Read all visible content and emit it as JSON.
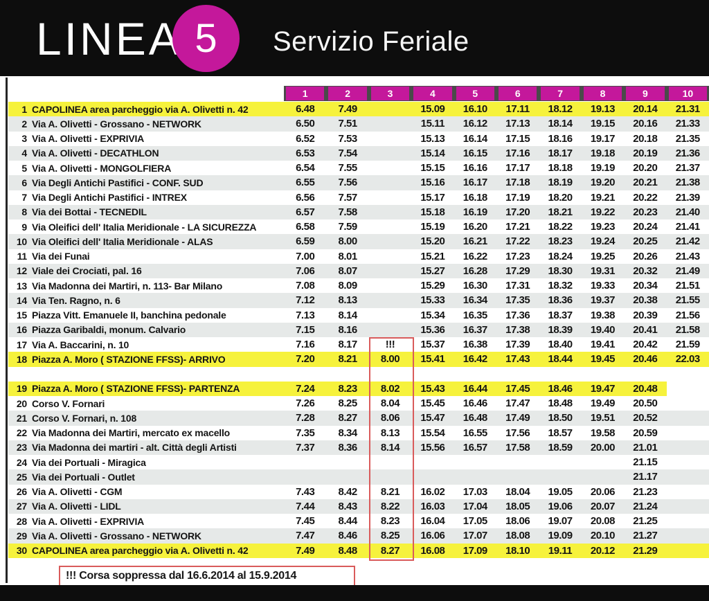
{
  "header": {
    "line_label": "LINEA",
    "line_number": "5",
    "service_name": "Servizio Feriale"
  },
  "colors": {
    "magenta": "#c4189b",
    "yellow": "#f6f23c",
    "stripe_gray": "#e6e9e8",
    "note_red": "#d95b5b",
    "title_bg": "#0d0d0d"
  },
  "columns": [
    "1",
    "2",
    "3",
    "4",
    "5",
    "6",
    "7",
    "8",
    "9",
    "10"
  ],
  "stops": [
    {
      "num": "1",
      "name": "CAPOLINEA area parcheggio via A. Olivetti n. 42",
      "shade": "yellow",
      "times": [
        "6.48",
        "7.49",
        "",
        "15.09",
        "16.10",
        "17.11",
        "18.12",
        "19.13",
        "20.14",
        "21.31"
      ]
    },
    {
      "num": "2",
      "name": "Via A. Olivetti - Grossano - NETWORK",
      "shade": "gray",
      "times": [
        "6.50",
        "7.51",
        "",
        "15.11",
        "16.12",
        "17.13",
        "18.14",
        "19.15",
        "20.16",
        "21.33"
      ]
    },
    {
      "num": "3",
      "name": "Via A. Olivetti - EXPRIVIA",
      "shade": "white",
      "times": [
        "6.52",
        "7.53",
        "",
        "15.13",
        "16.14",
        "17.15",
        "18.16",
        "19.17",
        "20.18",
        "21.35"
      ]
    },
    {
      "num": "4",
      "name": "Via A. Olivetti - DECATHLON",
      "shade": "gray",
      "times": [
        "6.53",
        "7.54",
        "",
        "15.14",
        "16.15",
        "17.16",
        "18.17",
        "19.18",
        "20.19",
        "21.36"
      ]
    },
    {
      "num": "5",
      "name": "Via A. Olivetti - MONGOLFIERA",
      "shade": "white",
      "times": [
        "6.54",
        "7.55",
        "",
        "15.15",
        "16.16",
        "17.17",
        "18.18",
        "19.19",
        "20.20",
        "21.37"
      ]
    },
    {
      "num": "6",
      "name": "Via Degli Antichi Pastifici - CONF. SUD",
      "shade": "gray",
      "times": [
        "6.55",
        "7.56",
        "",
        "15.16",
        "16.17",
        "17.18",
        "18.19",
        "19.20",
        "20.21",
        "21.38"
      ]
    },
    {
      "num": "7",
      "name": "Via Degli Antichi Pastifici - INTREX",
      "shade": "white",
      "times": [
        "6.56",
        "7.57",
        "",
        "15.17",
        "16.18",
        "17.19",
        "18.20",
        "19.21",
        "20.22",
        "21.39"
      ]
    },
    {
      "num": "8",
      "name": "Via dei Bottai - TECNEDIL",
      "shade": "gray",
      "times": [
        "6.57",
        "7.58",
        "",
        "15.18",
        "16.19",
        "17.20",
        "18.21",
        "19.22",
        "20.23",
        "21.40"
      ]
    },
    {
      "num": "9",
      "name": "Via Oleifici dell' Italia Meridionale - LA SICUREZZA",
      "shade": "white",
      "times": [
        "6.58",
        "7.59",
        "",
        "15.19",
        "16.20",
        "17.21",
        "18.22",
        "19.23",
        "20.24",
        "21.41"
      ]
    },
    {
      "num": "10",
      "name": "Via Oleifici dell' Italia Meridionale - ALAS",
      "shade": "gray",
      "times": [
        "6.59",
        "8.00",
        "",
        "15.20",
        "16.21",
        "17.22",
        "18.23",
        "19.24",
        "20.25",
        "21.42"
      ]
    },
    {
      "num": "11",
      "name": "Via dei Funai",
      "shade": "white",
      "times": [
        "7.00",
        "8.01",
        "",
        "15.21",
        "16.22",
        "17.23",
        "18.24",
        "19.25",
        "20.26",
        "21.43"
      ]
    },
    {
      "num": "12",
      "name": "Viale dei Crociati, pal. 16",
      "shade": "gray",
      "times": [
        "7.06",
        "8.07",
        "",
        "15.27",
        "16.28",
        "17.29",
        "18.30",
        "19.31",
        "20.32",
        "21.49"
      ]
    },
    {
      "num": "13",
      "name": "Via Madonna dei Martiri, n. 113- Bar Milano",
      "shade": "white",
      "times": [
        "7.08",
        "8.09",
        "",
        "15.29",
        "16.30",
        "17.31",
        "18.32",
        "19.33",
        "20.34",
        "21.51"
      ]
    },
    {
      "num": "14",
      "name": "Via Ten. Ragno, n. 6",
      "shade": "gray",
      "times": [
        "7.12",
        "8.13",
        "",
        "15.33",
        "16.34",
        "17.35",
        "18.36",
        "19.37",
        "20.38",
        "21.55"
      ]
    },
    {
      "num": "15",
      "name": "Piazza Vitt. Emanuele II, banchina pedonale",
      "shade": "white",
      "times": [
        "7.13",
        "8.14",
        "",
        "15.34",
        "16.35",
        "17.36",
        "18.37",
        "19.38",
        "20.39",
        "21.56"
      ]
    },
    {
      "num": "16",
      "name": "Piazza Garibaldi, monum. Calvario",
      "shade": "gray",
      "times": [
        "7.15",
        "8.16",
        "",
        "15.36",
        "16.37",
        "17.38",
        "18.39",
        "19.40",
        "20.41",
        "21.58"
      ]
    },
    {
      "num": "17",
      "name": "Via A. Baccarini, n. 10",
      "shade": "white",
      "times": [
        "7.16",
        "8.17",
        "!!!",
        "15.37",
        "16.38",
        "17.39",
        "18.40",
        "19.41",
        "20.42",
        "21.59"
      ]
    },
    {
      "num": "18",
      "name": "Piazza A. Moro ( STAZIONE FFSS)- ARRIVO",
      "shade": "yellow",
      "spacer_after": true,
      "times": [
        "7.20",
        "8.21",
        "8.00",
        "15.41",
        "16.42",
        "17.43",
        "18.44",
        "19.45",
        "20.46",
        "22.03"
      ]
    },
    {
      "num": "19",
      "name": "Piazza A. Moro ( STAZIONE FFSS)- PARTENZA",
      "shade": "yellow-partial",
      "times": [
        "7.24",
        "8.23",
        "8.02",
        "15.43",
        "16.44",
        "17.45",
        "18.46",
        "19.47",
        "20.48",
        ""
      ]
    },
    {
      "num": "20",
      "name": "Corso V. Fornari",
      "shade": "white",
      "times": [
        "7.26",
        "8.25",
        "8.04",
        "15.45",
        "16.46",
        "17.47",
        "18.48",
        "19.49",
        "20.50",
        ""
      ]
    },
    {
      "num": "21",
      "name": "Corso V. Fornari, n. 108",
      "shade": "gray",
      "times": [
        "7.28",
        "8.27",
        "8.06",
        "15.47",
        "16.48",
        "17.49",
        "18.50",
        "19.51",
        "20.52",
        ""
      ]
    },
    {
      "num": "22",
      "name": "Via Madonna dei Martiri, mercato ex macello",
      "shade": "white",
      "times": [
        "7.35",
        "8.34",
        "8.13",
        "15.54",
        "16.55",
        "17.56",
        "18.57",
        "19.58",
        "20.59",
        ""
      ]
    },
    {
      "num": "23",
      "name": "Via Madonna dei martiri - alt. Città degli Artisti",
      "shade": "gray",
      "times": [
        "7.37",
        "8.36",
        "8.14",
        "15.56",
        "16.57",
        "17.58",
        "18.59",
        "20.00",
        "21.01",
        ""
      ]
    },
    {
      "num": "24",
      "name": "Via dei Portuali - Miragica",
      "shade": "white",
      "times": [
        "",
        "",
        "",
        "",
        "",
        "",
        "",
        "",
        "21.15",
        ""
      ]
    },
    {
      "num": "25",
      "name": "Via dei Portuali - Outlet",
      "shade": "gray",
      "times": [
        "",
        "",
        "",
        "",
        "",
        "",
        "",
        "",
        "21.17",
        ""
      ]
    },
    {
      "num": "26",
      "name": "Via A. Olivetti - CGM",
      "shade": "white",
      "times": [
        "7.43",
        "8.42",
        "8.21",
        "16.02",
        "17.03",
        "18.04",
        "19.05",
        "20.06",
        "21.23",
        ""
      ]
    },
    {
      "num": "27",
      "name": "Via A. Olivetti - LIDL",
      "shade": "gray",
      "times": [
        "7.44",
        "8.43",
        "8.22",
        "16.03",
        "17.04",
        "18.05",
        "19.06",
        "20.07",
        "21.24",
        ""
      ]
    },
    {
      "num": "28",
      "name": "Via A. Olivetti - EXPRIVIA",
      "shade": "white",
      "times": [
        "7.45",
        "8.44",
        "8.23",
        "16.04",
        "17.05",
        "18.06",
        "19.07",
        "20.08",
        "21.25",
        ""
      ]
    },
    {
      "num": "29",
      "name": "Via A. Olivetti - Grossano - NETWORK",
      "shade": "gray",
      "times": [
        "7.47",
        "8.46",
        "8.25",
        "16.06",
        "17.07",
        "18.08",
        "19.09",
        "20.10",
        "21.27",
        ""
      ]
    },
    {
      "num": "30",
      "name": "CAPOLINEA area parcheggio via A. Olivetti n. 42",
      "shade": "yellow",
      "times": [
        "7.49",
        "8.48",
        "8.27",
        "16.08",
        "17.09",
        "18.10",
        "19.11",
        "20.12",
        "21.29",
        ""
      ]
    }
  ],
  "note": "!!! Corsa soppressa dal 16.6.2014 al 15.9.2014"
}
